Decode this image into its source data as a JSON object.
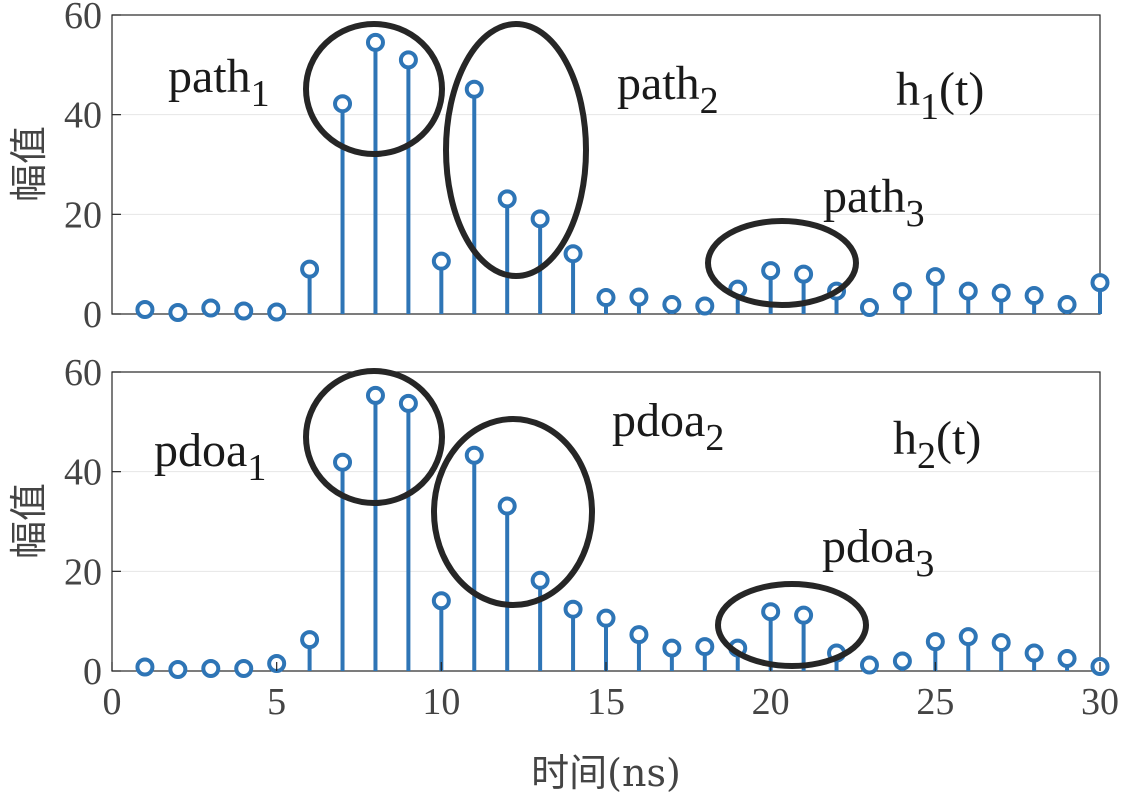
{
  "chart_data": [
    {
      "type": "stem",
      "x": [
        1,
        2,
        3,
        4,
        5,
        6,
        7,
        8,
        9,
        10,
        11,
        12,
        13,
        14,
        15,
        16,
        17,
        18,
        19,
        20,
        21,
        22,
        23,
        24,
        25,
        26,
        27,
        28,
        29,
        30
      ],
      "values": [
        0.9,
        0.3,
        1.2,
        0.6,
        0.4,
        9.0,
        42.2,
        54.5,
        51.0,
        10.6,
        45.1,
        23.1,
        19.1,
        12.1,
        3.3,
        3.4,
        1.9,
        1.6,
        5.0,
        8.7,
        8.0,
        4.6,
        1.3,
        4.5,
        7.5,
        4.6,
        4.2,
        3.7,
        1.9,
        6.3
      ],
      "xlim": [
        0,
        30
      ],
      "ylim": [
        0,
        60
      ],
      "yticks": [
        "0",
        "20",
        "40",
        "60"
      ],
      "ylabel": "幅值",
      "color": "#2e75b6",
      "annotations": [
        {
          "base": "path",
          "sub": "1"
        },
        {
          "base": "path",
          "sub": "2"
        },
        {
          "base": "path",
          "sub": "3"
        },
        {
          "base": "h",
          "sub": "1",
          "tail": "(t)"
        }
      ],
      "grid": "horizontal"
    },
    {
      "type": "stem",
      "x": [
        1,
        2,
        3,
        4,
        5,
        6,
        7,
        8,
        9,
        10,
        11,
        12,
        13,
        14,
        15,
        16,
        17,
        18,
        19,
        20,
        21,
        22,
        23,
        24,
        25,
        26,
        27,
        28,
        29,
        30
      ],
      "values": [
        0.8,
        0.3,
        0.5,
        0.5,
        1.5,
        6.3,
        41.9,
        55.3,
        53.7,
        14.1,
        43.3,
        33.1,
        18.2,
        12.4,
        10.6,
        7.3,
        4.6,
        4.9,
        4.6,
        11.9,
        11.2,
        3.6,
        1.2,
        2.0,
        5.9,
        6.9,
        5.7,
        3.6,
        2.5,
        0.9
      ],
      "xlim": [
        0,
        30
      ],
      "ylim": [
        0,
        60
      ],
      "yticks": [
        "0",
        "20",
        "40",
        "60"
      ],
      "xticks": [
        "0",
        "5",
        "10",
        "15",
        "20",
        "25",
        "30"
      ],
      "ylabel": "幅值",
      "xlabel": "时间(ns)",
      "color": "#2e75b6",
      "annotations": [
        {
          "base": "pdoa",
          "sub": "1"
        },
        {
          "base": "pdoa",
          "sub": "2"
        },
        {
          "base": "pdoa",
          "sub": "3"
        },
        {
          "base": "h",
          "sub": "2",
          "tail": "(t)"
        }
      ],
      "grid": "horizontal"
    }
  ]
}
